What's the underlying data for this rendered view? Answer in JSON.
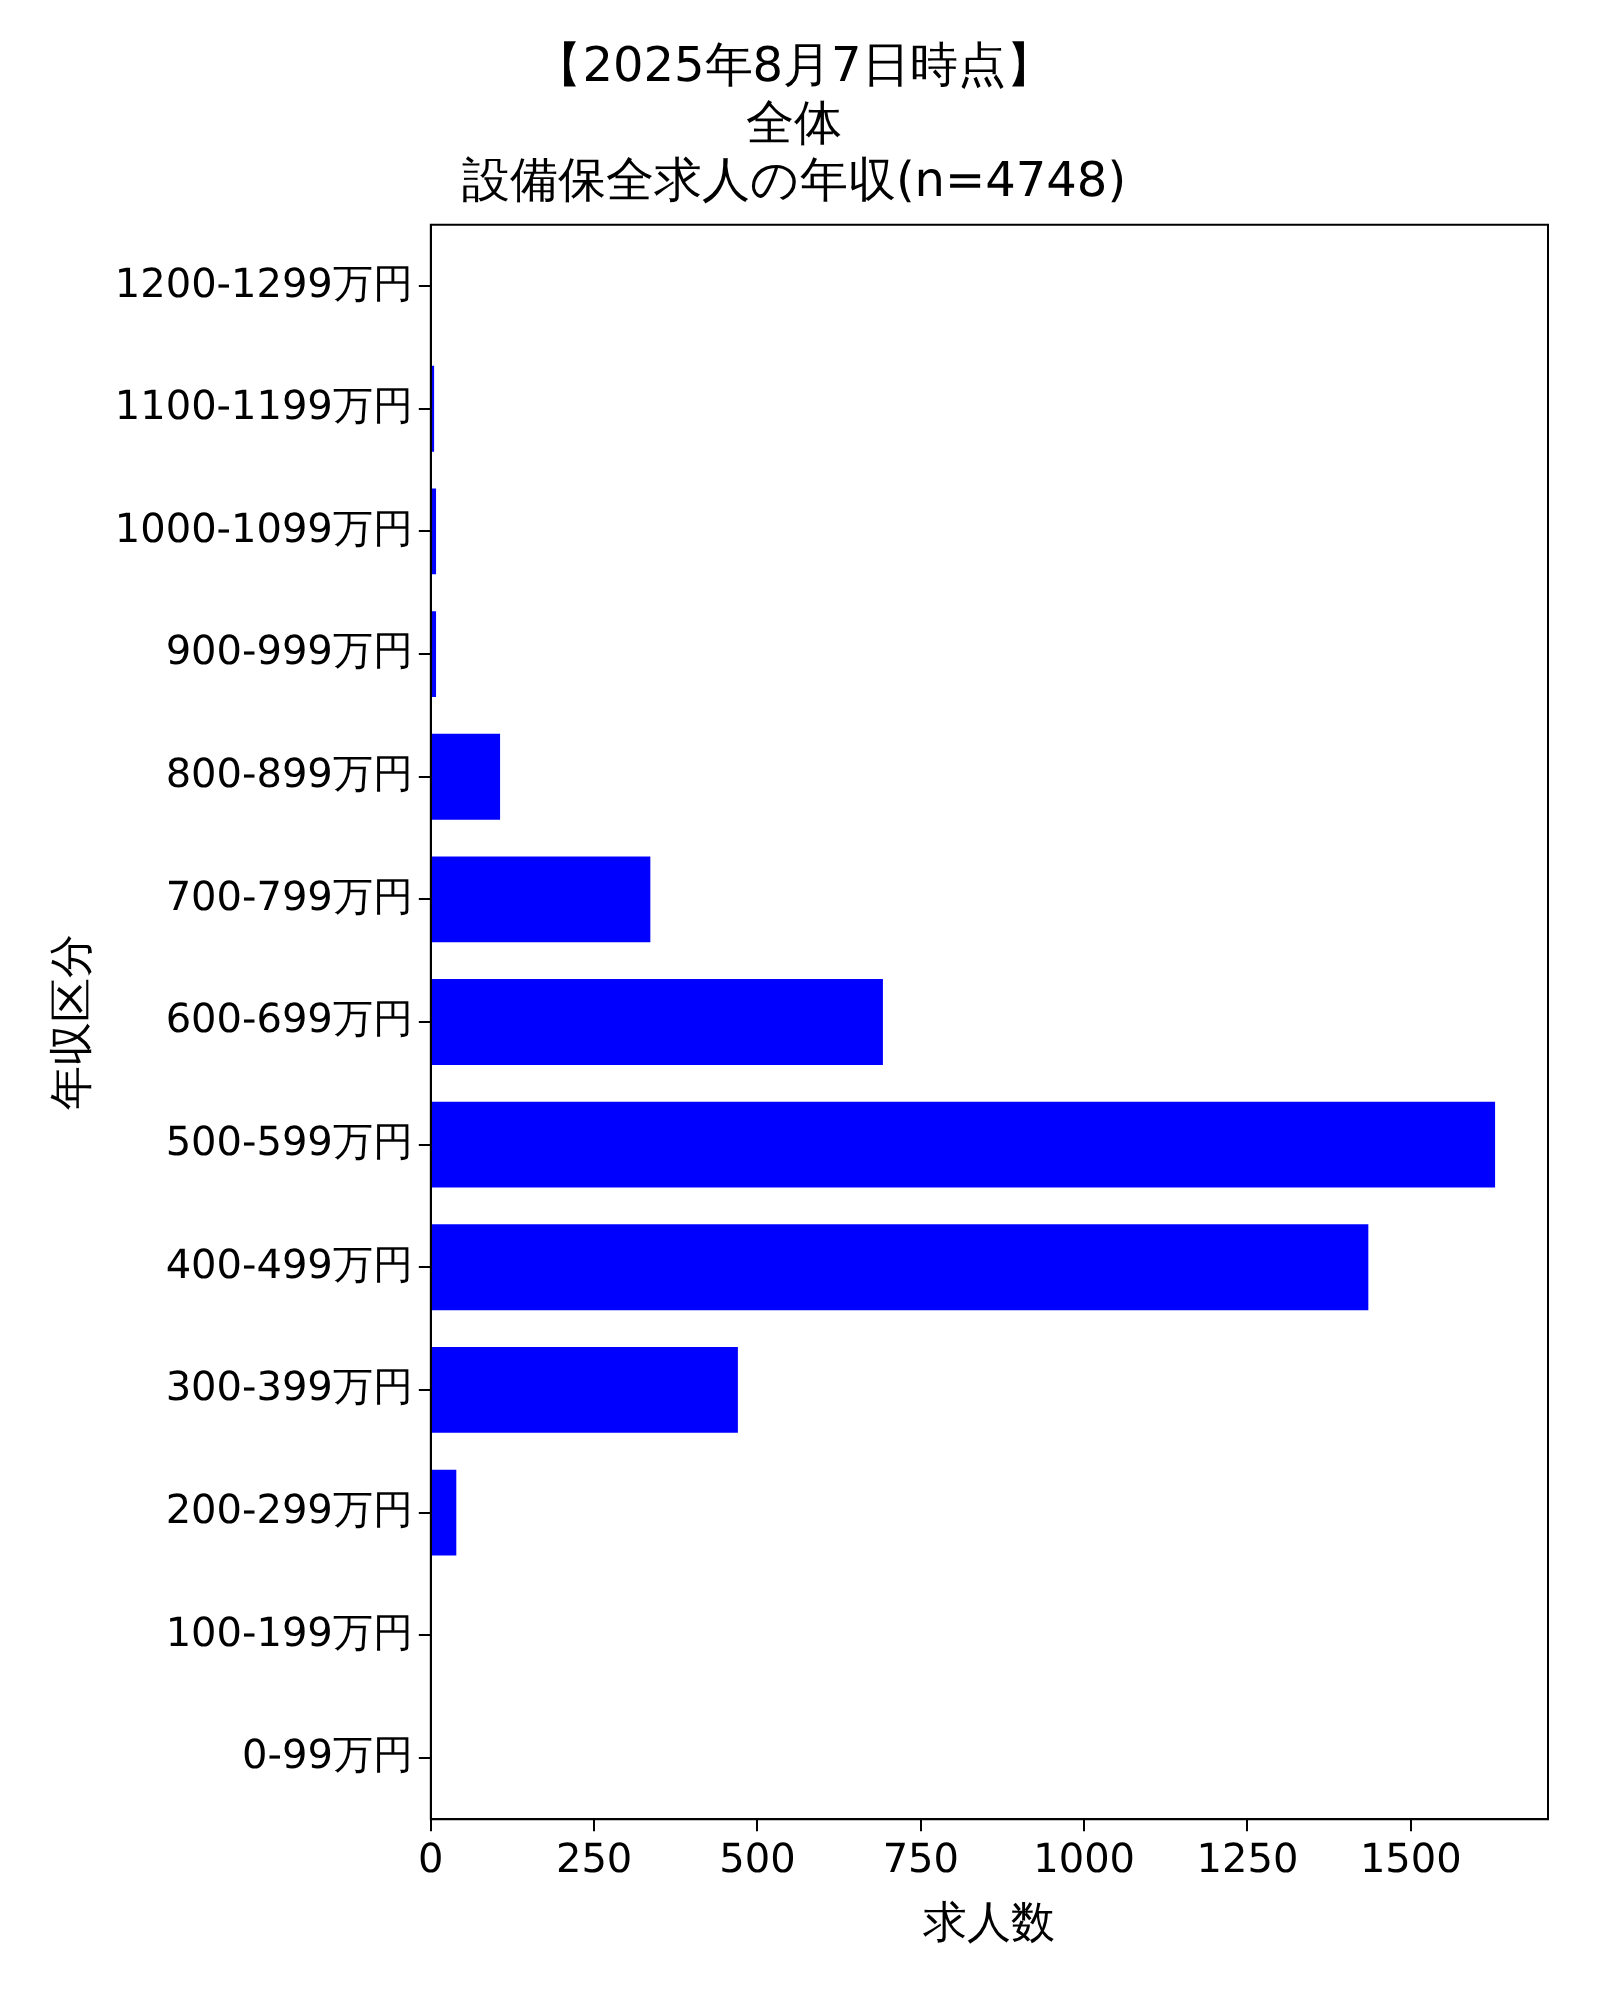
{
  "chart_data": {
    "type": "bar",
    "orientation": "horizontal",
    "title": "【2025年8月7日時点】",
    "subtitle": "全体",
    "annotations": [
      "設備保全求人の年収(n=4748)"
    ],
    "xlabel": "求人数",
    "ylabel": "年収区分",
    "categories": [
      "1200-1299万円",
      "1100-1199万円",
      "1000-1099万円",
      "900-999万円",
      "800-899万円",
      "700-799万円",
      "600-699万円",
      "500-599万円",
      "400-499万円",
      "300-399万円",
      "200-299万円",
      "100-199万円",
      "0-99万円"
    ],
    "values": [
      0,
      5,
      8,
      8,
      106,
      336,
      692,
      1629,
      1435,
      470,
      39,
      0,
      0
    ],
    "color": "#0000ff",
    "xlim": [
      0,
      1710
    ],
    "xticks": [
      0,
      250,
      500,
      750,
      1000,
      1250,
      1500
    ],
    "grid": false,
    "legend": false
  }
}
